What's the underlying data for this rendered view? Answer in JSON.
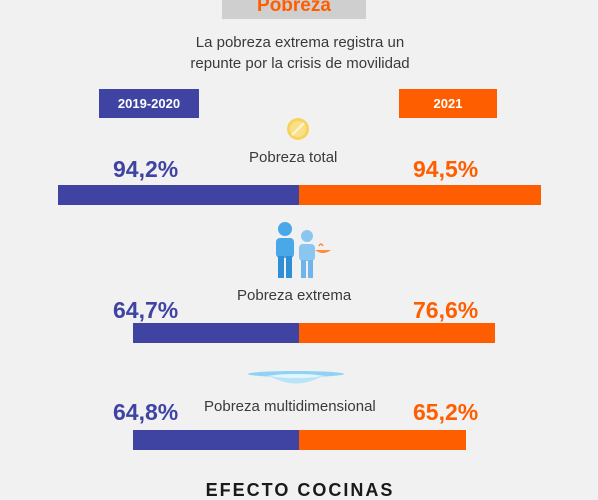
{
  "header": {
    "title": "Pobreza"
  },
  "subtitle": {
    "line1": "La pobreza extrema registra un",
    "line2": "repunte por la crisis de movilidad"
  },
  "periods": {
    "left": "2019-2020",
    "right": "2021"
  },
  "footer": {
    "partial_text": "EFECTO COCINAS"
  },
  "colors": {
    "left": "#3f44a3",
    "right": "#ff5e00",
    "background": "#f1f1f1"
  },
  "icons": [
    "coin-icon",
    "family-icon",
    "plate-icon"
  ],
  "chart_data": {
    "type": "bar",
    "categories": [
      "Pobreza total",
      "Pobreza extrema",
      "Pobreza multidimensional"
    ],
    "series": [
      {
        "name": "2019-2020",
        "values": [
          94.2,
          64.7,
          64.8
        ],
        "labels": [
          "94,2%",
          "64,7%",
          "64,8%"
        ]
      },
      {
        "name": "2021",
        "values": [
          94.5,
          76.6,
          65.2
        ],
        "labels": [
          "94,5%",
          "76,6%",
          "65,2%"
        ]
      }
    ],
    "unit": "%",
    "layout": "diverging-horizontal",
    "ylim": [
      0,
      100
    ]
  }
}
